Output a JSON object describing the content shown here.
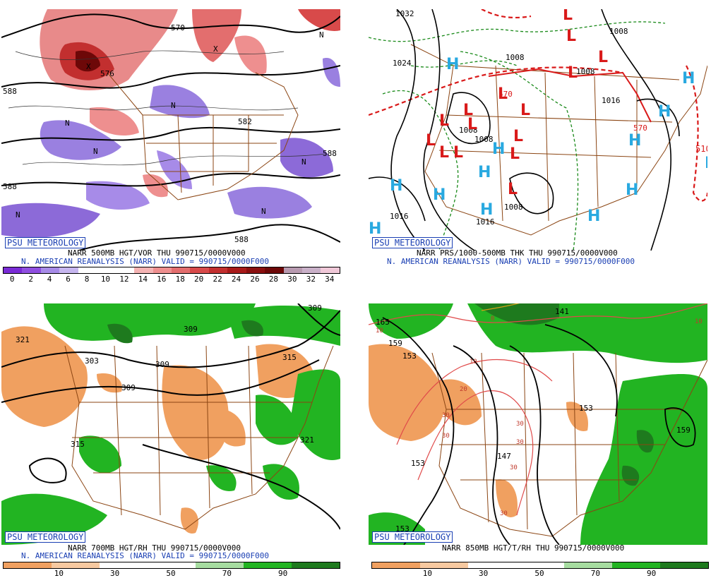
{
  "badge": "PSU METEOROLOGY",
  "panels": {
    "tl": {
      "line1": "NARR 500MB HGT/VOR THU 990715/0000V000",
      "line2": "N. AMERICAN REANALYSIS (NARR) VALID = 990715/0000F000",
      "scale_ticks": [
        "0",
        "2",
        "4",
        "6",
        "8",
        "10",
        "12",
        "14",
        "16",
        "18",
        "20",
        "22",
        "24",
        "26",
        "28",
        "30",
        "32",
        "34"
      ],
      "scale_colors": [
        "#7a2bd6",
        "#8f4ee0",
        "#a78be8",
        "#c6b6ef",
        "#ffffff",
        "#ffffff",
        "#ffffff",
        "#f4b3b3",
        "#ee8f8f",
        "#e36e6e",
        "#d84a4a",
        "#c22f2f",
        "#a81a1a",
        "#8a0f0f",
        "#6d0808",
        "#b89ab0",
        "#c9b0c8",
        "#f0c8d8"
      ],
      "contour_labels": [
        "588",
        "588",
        "576",
        "570",
        "582",
        "588",
        "588"
      ],
      "vort_labels": [
        "N",
        "N",
        "N",
        "N",
        "N",
        "N",
        "N",
        "X",
        "X"
      ]
    },
    "tr": {
      "line1": "NARR PRS/1000-500MB THK THU 990715/0000V000",
      "line2": "N. AMERICAN REANALYSIS (NARR) VALID = 990715/0000F000",
      "isobars": [
        "1032",
        "1024",
        "1008",
        "1008",
        "1008",
        "1016",
        "1016",
        "1016",
        "1008",
        "1008",
        "1008"
      ],
      "thickness": [
        "510",
        "570",
        "570"
      ],
      "highs": [
        "H",
        "H",
        "H",
        "H",
        "H",
        "H",
        "H",
        "H",
        "H",
        "H",
        "H",
        "H",
        "H"
      ],
      "lows": [
        "L",
        "L",
        "L",
        "L",
        "L",
        "L",
        "L",
        "L",
        "L",
        "L",
        "L",
        "L",
        "L",
        "L",
        "L"
      ]
    },
    "bl": {
      "line1": "NARR 700MB HGT/RH THU 990715/0000V000",
      "line2": "N. AMERICAN REANALYSIS (NARR) VALID = 990715/0000F000",
      "scale_ticks": [
        "10",
        "30",
        "50",
        "70",
        "90"
      ],
      "scale_colors": [
        "#f0a060",
        "#f7c9a0",
        "#ffffff",
        "#ffffff",
        "#a6dca0",
        "#22b422",
        "#1e7a1e"
      ],
      "contour_labels": [
        "321",
        "303",
        "309",
        "309",
        "309",
        "315",
        "315",
        "321",
        "309"
      ]
    },
    "br": {
      "line1": "NARR 850MB HGT/T/RH THU 990715/0000V000",
      "scale_ticks": [
        "10",
        "30",
        "50",
        "70",
        "90"
      ],
      "scale_colors": [
        "#f0a060",
        "#f7c9a0",
        "#ffffff",
        "#ffffff",
        "#a6dca0",
        "#22b422",
        "#1e7a1e"
      ],
      "contour_labels": [
        "165",
        "159",
        "153",
        "153",
        "147",
        "153",
        "159",
        "141",
        "153"
      ],
      "temp_labels": [
        "10",
        "10",
        "20",
        "30",
        "30",
        "30",
        "30",
        "30",
        "30",
        "0",
        "10"
      ]
    }
  }
}
